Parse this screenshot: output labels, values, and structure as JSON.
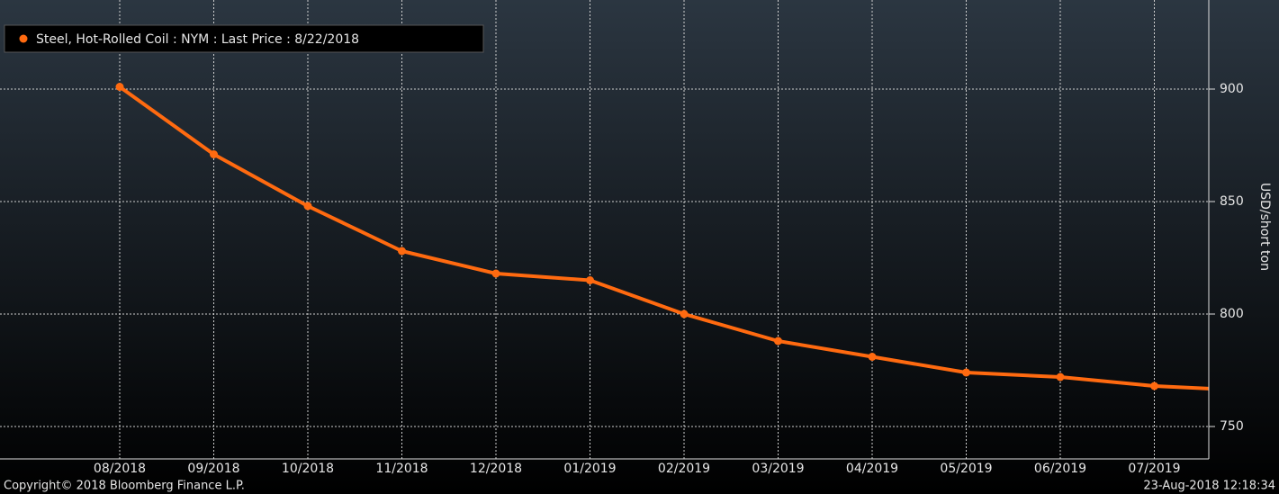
{
  "chart_data": {
    "type": "line",
    "legend": "Steel, Hot-Rolled Coil : NYM : Last Price : 8/22/2018",
    "y_label": "USD/short ton",
    "copyright": "Copyright© 2018 Bloomberg Finance L.P.",
    "timestamp": "23-Aug-2018 12:18:34",
    "categories": [
      "08/2018",
      "09/2018",
      "10/2018",
      "11/2018",
      "12/2018",
      "01/2019",
      "02/2019",
      "03/2019",
      "04/2019",
      "05/2019",
      "06/2019",
      "07/2019",
      null
    ],
    "series": [
      {
        "name": "Steel, Hot-Rolled Coil : NYM : Last Price : 8/22/2018",
        "color": "#ff6a10",
        "values": [
          901,
          871,
          848,
          828,
          818,
          815,
          800,
          788,
          781,
          774,
          772,
          768,
          766
        ]
      }
    ],
    "ylim": [
      735.6,
      939.6
    ],
    "yticks": [
      750,
      800,
      850,
      900
    ],
    "grid": true
  }
}
